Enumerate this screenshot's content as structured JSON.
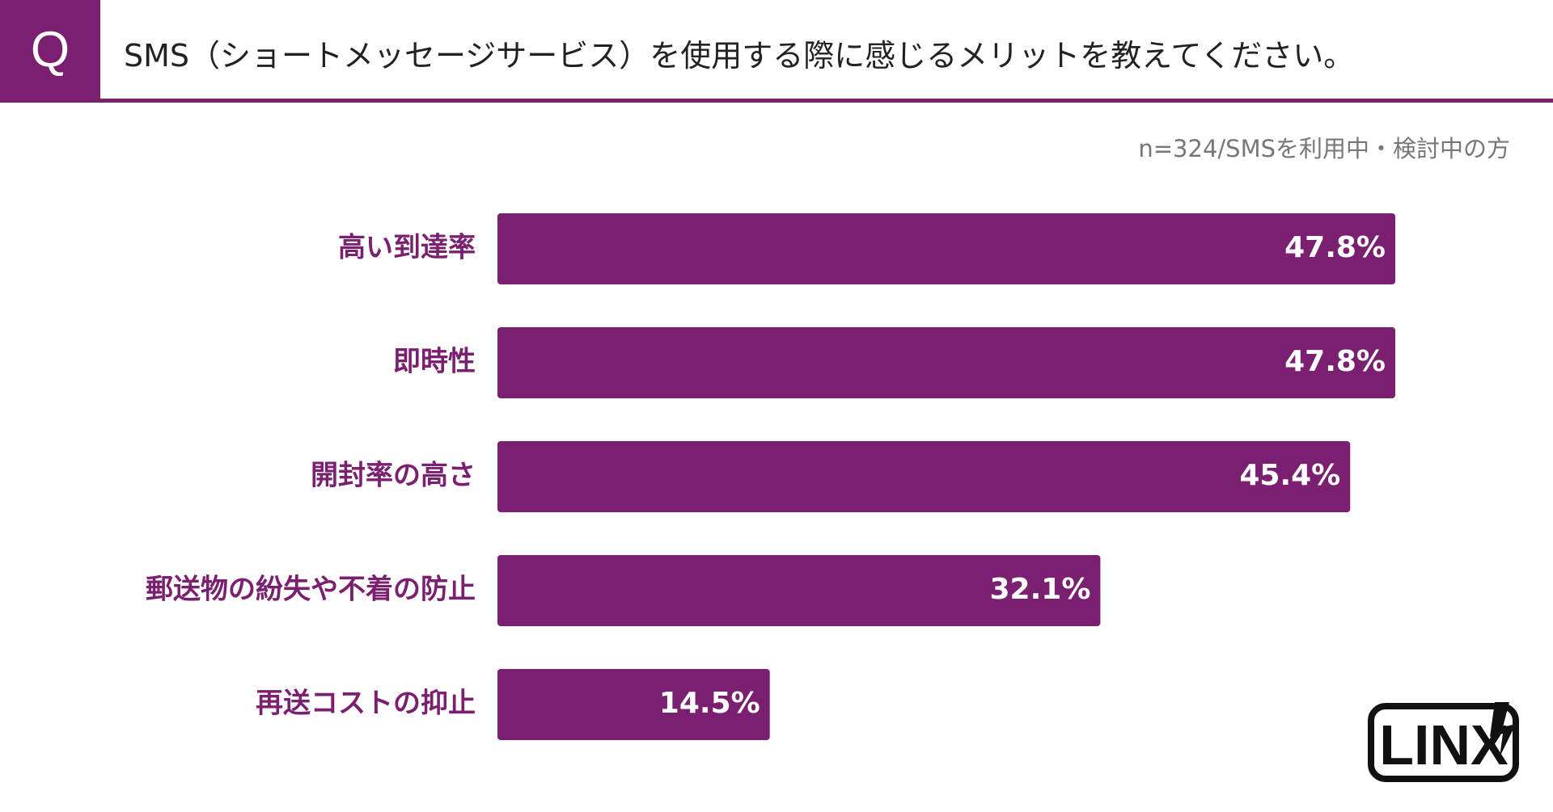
{
  "header": {
    "q_label": "Q",
    "question": "SMS（ショートメッセージサービス）を使用する際に感じるメリットを教えてください。"
  },
  "note": "n=324/SMSを利用中・検討中の方",
  "logo": {
    "text": "LINX"
  },
  "colors": {
    "accent": "#7b1f70",
    "bar": "#7b1f70",
    "category_text": "#7b1f70",
    "value_text": "#ffffff"
  },
  "chart_data": {
    "type": "bar",
    "orientation": "horizontal",
    "categories": [
      "高い到達率",
      "即時性",
      "開封率の高さ",
      "郵送物の紛失や不着の防止",
      "再送コストの抑止"
    ],
    "values": [
      47.8,
      47.8,
      45.4,
      32.1,
      14.5
    ],
    "value_labels": [
      "47.8%",
      "47.8%",
      "45.4%",
      "32.1%",
      "14.5%"
    ],
    "unit": "%",
    "title": "",
    "xlabel": "",
    "ylabel": "",
    "xlim": [
      0,
      47.8
    ],
    "grid": false,
    "legend": "none"
  }
}
